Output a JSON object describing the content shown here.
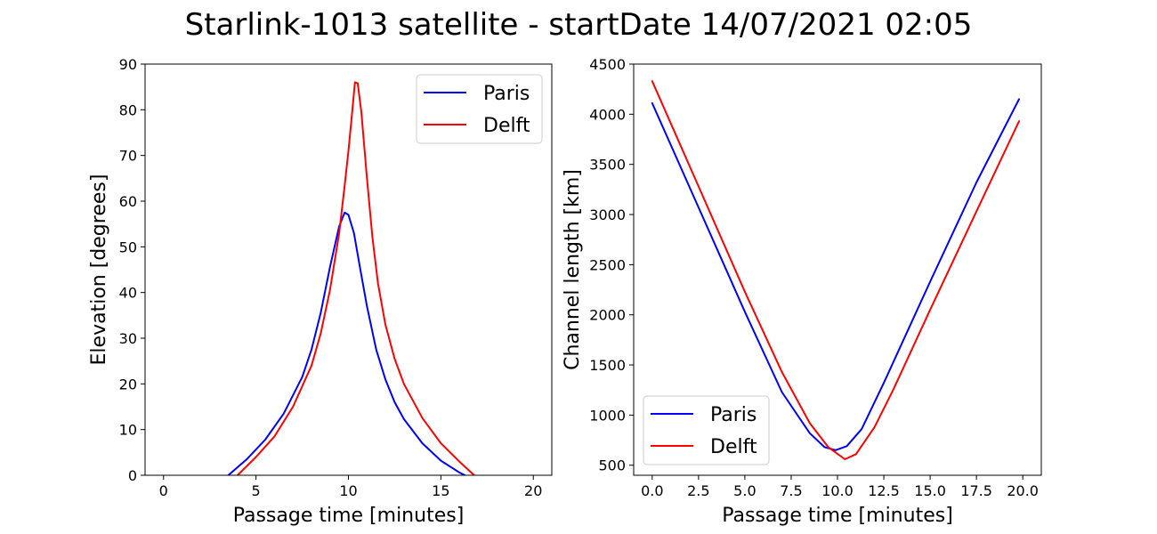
{
  "figure_title": "Starlink-1013 satellite - startDate 14/07/2021 02:05",
  "colors": {
    "paris": "#0000ff",
    "delft": "#ff0000"
  },
  "chart_data": [
    {
      "type": "line",
      "title": "",
      "xlabel": "Passage time [minutes]",
      "ylabel": "Elevation [degrees]",
      "xlim": [
        -1,
        21
      ],
      "ylim": [
        0,
        90
      ],
      "xticks": [
        0,
        5,
        10,
        15,
        20
      ],
      "xtick_labels": [
        "0",
        "5",
        "10",
        "15",
        "20"
      ],
      "yticks": [
        0,
        10,
        20,
        30,
        40,
        50,
        60,
        70,
        80,
        90
      ],
      "ytick_labels": [
        "0",
        "10",
        "20",
        "30",
        "40",
        "50",
        "60",
        "70",
        "80",
        "90"
      ],
      "legend_position": "upper right",
      "series": [
        {
          "name": "Paris",
          "x": [
            3.5,
            4.5,
            5.5,
            6.5,
            7.5,
            8.0,
            8.5,
            9.0,
            9.5,
            9.8,
            10.0,
            10.3,
            10.6,
            11.0,
            11.5,
            12.0,
            12.5,
            13.0,
            14.0,
            15.0,
            16.0,
            16.3
          ],
          "y": [
            0,
            3.5,
            7.8,
            13.5,
            21.5,
            27.5,
            35.5,
            45.5,
            54.5,
            57.5,
            57.0,
            53.0,
            46.0,
            37.0,
            27.5,
            21.0,
            16.0,
            12.3,
            7.0,
            3.2,
            0.6,
            0
          ]
        },
        {
          "name": "Delft",
          "x": [
            4.0,
            5.0,
            6.0,
            7.0,
            8.0,
            8.5,
            9.0,
            9.5,
            9.8,
            10.0,
            10.2,
            10.35,
            10.5,
            10.7,
            11.0,
            11.3,
            11.6,
            12.0,
            12.5,
            13.0,
            14.0,
            15.0,
            16.0,
            16.8
          ],
          "y": [
            0,
            4.0,
            8.5,
            15.0,
            24.0,
            31.0,
            40.5,
            53.0,
            63.5,
            71.0,
            79.5,
            86.0,
            85.8,
            79.5,
            65.0,
            52.0,
            42.0,
            33.0,
            25.5,
            20.0,
            12.5,
            7.0,
            3.0,
            0
          ]
        }
      ]
    },
    {
      "type": "line",
      "title": "",
      "xlabel": "Passage time [minutes]",
      "ylabel": "Channel length [km]",
      "xlim": [
        -1,
        21
      ],
      "ylim": [
        400,
        4500
      ],
      "xticks": [
        0,
        2.5,
        5,
        7.5,
        10,
        12.5,
        15,
        17.5,
        20
      ],
      "xtick_labels": [
        "0.0",
        "2.5",
        "5.0",
        "7.5",
        "10.0",
        "12.5",
        "15.0",
        "17.5",
        "20.0"
      ],
      "yticks": [
        500,
        1000,
        1500,
        2000,
        2500,
        3000,
        3500,
        4000,
        4500
      ],
      "ytick_labels": [
        "500",
        "1000",
        "1500",
        "2000",
        "2500",
        "3000",
        "3500",
        "4000",
        "4500"
      ],
      "legend_position": "lower left",
      "series": [
        {
          "name": "Paris",
          "x": [
            0,
            2.5,
            5.0,
            7.0,
            8.5,
            9.3,
            9.9,
            10.5,
            11.3,
            12.5,
            15.0,
            17.5,
            19.8
          ],
          "y": [
            4110,
            3070,
            2030,
            1230,
            820,
            680,
            650,
            690,
            860,
            1320,
            2330,
            3320,
            4150
          ]
        },
        {
          "name": "Delft",
          "x": [
            0,
            2.5,
            5.0,
            7.0,
            8.5,
            9.5,
            10.4,
            11.0,
            12.0,
            13.0,
            15.0,
            17.5,
            19.8
          ],
          "y": [
            4330,
            3280,
            2230,
            1430,
            920,
            680,
            560,
            610,
            880,
            1250,
            2050,
            3030,
            3930
          ]
        }
      ]
    }
  ]
}
